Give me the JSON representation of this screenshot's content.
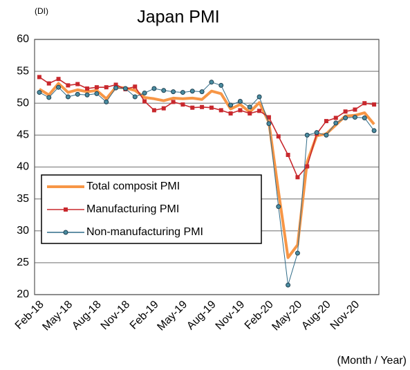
{
  "chart_data": {
    "type": "line",
    "title": "Japan PMI",
    "y_unit_label": "(DI)",
    "x_label": "(Month / Year)",
    "categories": [
      "Feb-18",
      null,
      null,
      "May-18",
      null,
      null,
      "Aug-18",
      null,
      null,
      "Nov-18",
      null,
      null,
      "Feb-19",
      null,
      null,
      "May-19",
      null,
      null,
      "Aug-19",
      null,
      null,
      "Nov-19",
      null,
      null,
      "Feb-20",
      null,
      null,
      "May-20",
      null,
      null,
      "Aug-20",
      null,
      null,
      "Nov-20",
      null,
      null
    ],
    "series": [
      {
        "name": "Total composit PMI",
        "color": "#f79646",
        "marker": "none",
        "values": [
          52.2,
          51.3,
          53.1,
          51.7,
          52.1,
          51.8,
          52.0,
          50.7,
          52.5,
          52.4,
          52.0,
          50.9,
          50.7,
          50.4,
          50.8,
          50.7,
          50.8,
          50.6,
          51.9,
          51.5,
          49.1,
          49.8,
          48.6,
          50.1,
          47.0,
          36.2,
          25.8,
          27.8,
          40.8,
          44.9,
          45.2,
          46.6,
          48.0,
          48.1,
          48.5,
          46.7
        ]
      },
      {
        "name": "Manufacturing PMI",
        "color": "#c8282d",
        "marker": "square",
        "values": [
          54.1,
          53.1,
          53.8,
          52.8,
          53.0,
          52.3,
          52.5,
          52.5,
          52.9,
          52.2,
          52.6,
          50.3,
          48.9,
          49.2,
          50.2,
          49.8,
          49.3,
          49.4,
          49.3,
          48.9,
          48.4,
          48.9,
          48.4,
          48.8,
          47.8,
          44.8,
          41.9,
          38.4,
          40.1,
          45.2,
          47.2,
          47.7,
          48.7,
          49.0,
          50.0,
          49.8
        ]
      },
      {
        "name": "Non-manufacturing PMI",
        "color": "#2f6b88",
        "marker": "circle",
        "values": [
          51.7,
          50.9,
          52.5,
          51.0,
          51.4,
          51.3,
          51.5,
          50.2,
          52.4,
          52.3,
          51.0,
          51.6,
          52.3,
          52.0,
          51.8,
          51.7,
          51.9,
          51.8,
          53.3,
          52.8,
          49.7,
          50.3,
          49.4,
          51.0,
          46.8,
          33.8,
          21.5,
          26.5,
          45.0,
          45.4,
          45.0,
          46.9,
          47.7,
          47.8,
          47.7,
          45.7
        ]
      }
    ],
    "ylim": [
      20,
      60
    ],
    "yticks": [
      20,
      25,
      30,
      35,
      40,
      45,
      50,
      55,
      60
    ],
    "grid": true,
    "legend": "lower left"
  }
}
